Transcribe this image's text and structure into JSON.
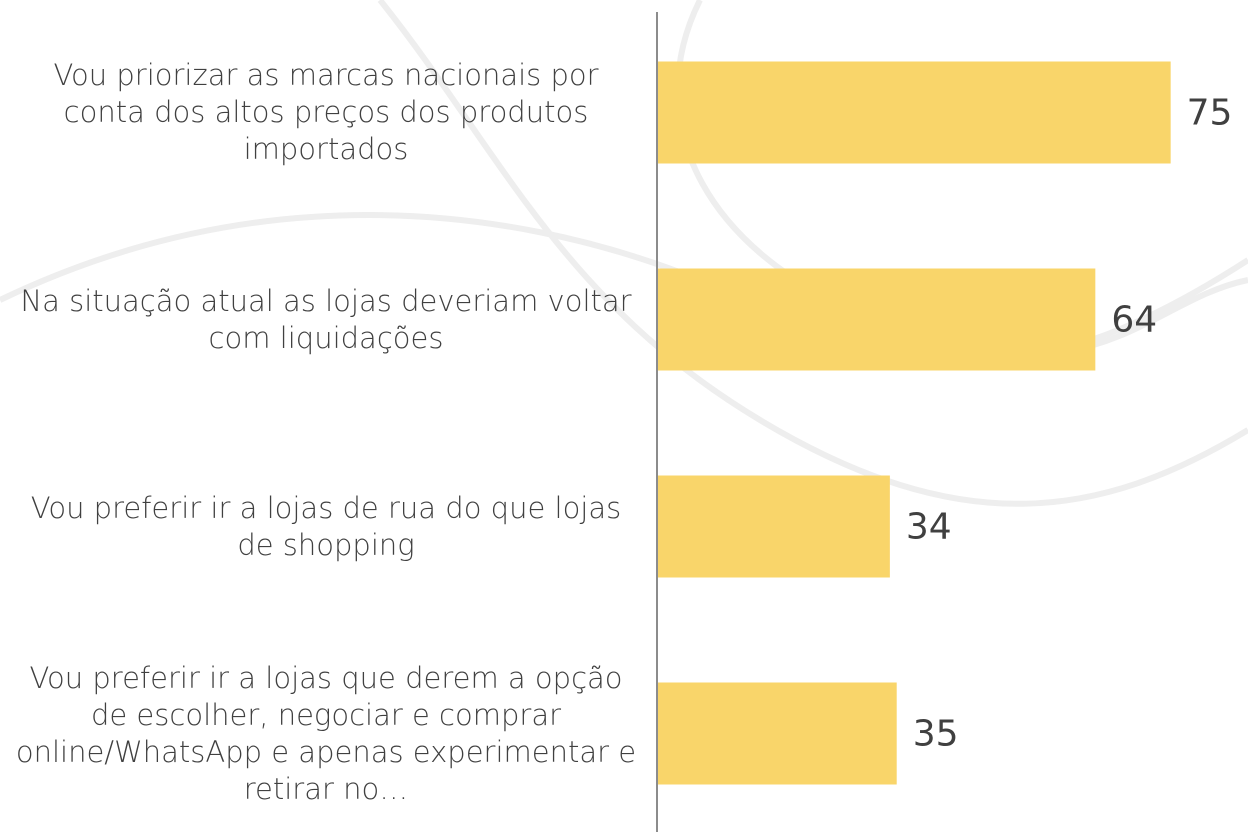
{
  "chart_data": {
    "type": "bar",
    "orientation": "horizontal",
    "categories": [
      "Vou priorizar as marcas nacionais por conta dos altos preços dos produtos importados",
      "Na situação atual as lojas deveriam voltar com  liquidações",
      "Vou preferir ir a lojas de rua do que lojas de shopping",
      "Vou preferir ir a lojas que derem a opção de escolher, negociar e comprar online/WhatsApp e apenas experimentar e retirar no…"
    ],
    "values": [
      75,
      64,
      34,
      35
    ],
    "color": "#f9d56a",
    "xlim": [
      0,
      86
    ]
  }
}
